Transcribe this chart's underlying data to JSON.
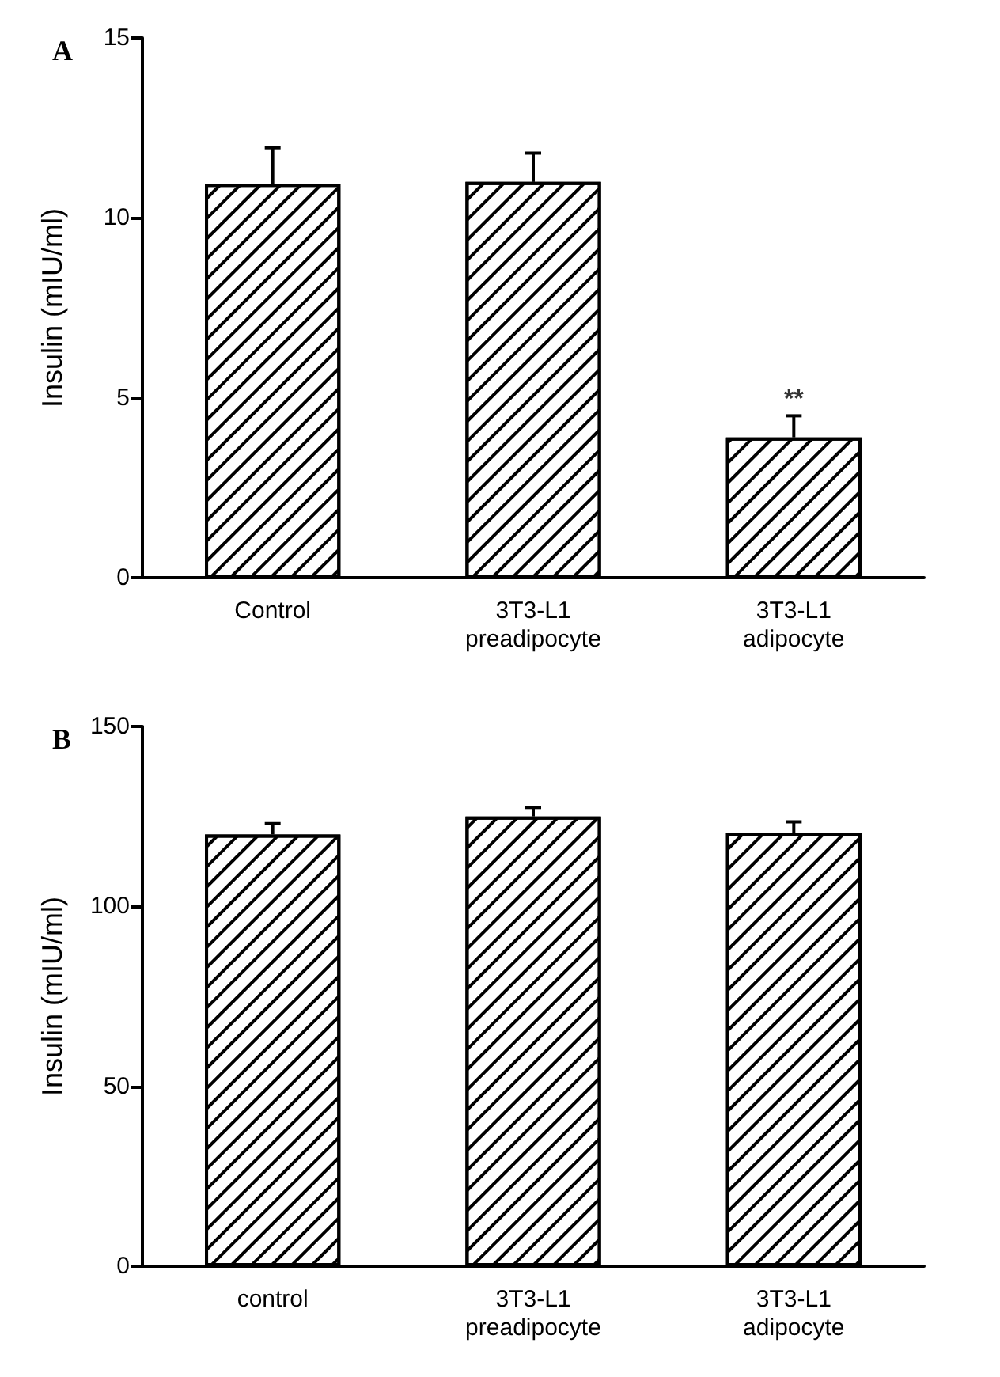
{
  "chart_data": [
    {
      "type": "bar",
      "title": "A",
      "ylabel": "Insulin (mIU/ml)",
      "categories": [
        "Control",
        "3T3-L1\npreadipocyte",
        "3T3-L1\nadipocyte"
      ],
      "values": [
        10.95,
        11.0,
        3.9
      ],
      "errors": [
        [
          10.95,
          11.95
        ],
        [
          11.0,
          11.8
        ],
        [
          3.9,
          4.5
        ]
      ],
      "color": "#ffffff",
      "ylim": [
        0,
        15
      ],
      "yticks": [
        0,
        5,
        10,
        15
      ],
      "grid": false,
      "annotations": [
        {
          "text": "**",
          "x": "3T3-L1\nadipocyte",
          "y": 4.5
        }
      ]
    },
    {
      "type": "bar",
      "title": "B",
      "ylabel": "Insulin (mIU/ml)",
      "categories": [
        "control",
        "3T3-L1\npreadipocyte",
        "3T3-L1\nadipocyte"
      ],
      "values": [
        120,
        125,
        120.5
      ],
      "errors": [
        [
          120,
          123
        ],
        [
          125,
          127.5
        ],
        [
          120.5,
          123.5
        ]
      ],
      "color": "#ffffff",
      "ylim": [
        0,
        150
      ],
      "yticks": [
        0,
        50,
        100,
        150
      ],
      "grid": false
    }
  ]
}
